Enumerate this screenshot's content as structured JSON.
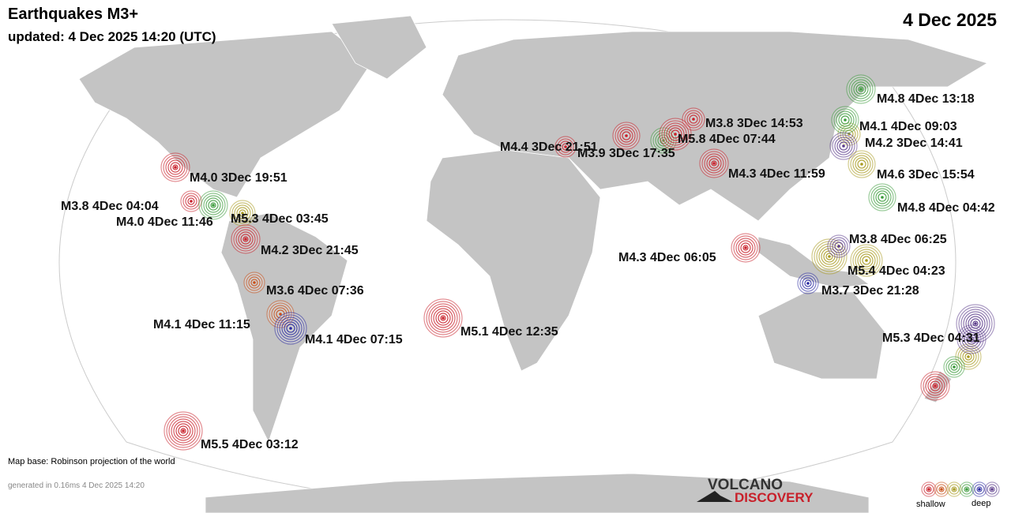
{
  "header": {
    "title": "Earthquakes M3+",
    "updated": "updated:  4 Dec 2025 14:20 (UTC)",
    "date": "4 Dec 2025"
  },
  "quakes": [
    {
      "label": "M4.8  4Dec 13:18",
      "color": "#3a9a3a"
    },
    {
      "label": "M4.1  4Dec 09:03",
      "color": "#3a9a3a"
    },
    {
      "label": "M3.8  3Dec 14:53",
      "color": "#c8202a"
    },
    {
      "label": "M5.8  4Dec 07:44",
      "color": "#c8202a"
    },
    {
      "label": "M4.2  3Dec 14:41",
      "color": "#5a3a8a"
    },
    {
      "label": "M4.4  3Dec 21:51",
      "color": "#c8202a"
    },
    {
      "label": "M3.9  3Dec 17:35",
      "color": "#c8202a"
    },
    {
      "label": "M4.3  4Dec 11:59",
      "color": "#c8202a"
    },
    {
      "label": "M4.6  3Dec 15:54",
      "color": "#a89a20"
    },
    {
      "label": "M4.0  3Dec 19:51",
      "color": "#c8202a"
    },
    {
      "label": "M3.8  4Dec 04:04",
      "color": "#c8202a"
    },
    {
      "label": "M4.8  4Dec 04:42",
      "color": "#3a9a3a"
    },
    {
      "label": "M4.0  4Dec 11:46",
      "color": "#3a9a3a"
    },
    {
      "label": "M5.3  4Dec 03:45",
      "color": "#a89a20"
    },
    {
      "label": "M4.2  3Dec 21:45",
      "color": "#c8202a"
    },
    {
      "label": "M3.8  4Dec 06:25",
      "color": "#5a3a8a"
    },
    {
      "label": "M4.3  4Dec 06:05",
      "color": "#c8202a"
    },
    {
      "label": "M5.4  4Dec 04:23",
      "color": "#a89a20"
    },
    {
      "label": "M3.6  4Dec 07:36",
      "color": "#c8501a"
    },
    {
      "label": "M3.7  3Dec 21:28",
      "color": "#2a2aa0"
    },
    {
      "label": "M4.1  4Dec 11:15",
      "color": "#c8501a"
    },
    {
      "label": "M5.1  4Dec 12:35",
      "color": "#c8202a"
    },
    {
      "label": "M4.1  4Dec 07:15",
      "color": "#2a2aa0"
    },
    {
      "label": "M5.3  4Dec 04:31",
      "color": "#5a3a8a"
    },
    {
      "label": "M5.5  4Dec 03:12",
      "color": "#c8202a"
    }
  ],
  "footer": {
    "map_base": "Map base: Robinson projection of the world",
    "generated": "generated in 0.16ms  4 Dec 2025 14:20"
  },
  "logo": {
    "line1": "VOLCANO",
    "line2": "DISCOVERY"
  },
  "legend": {
    "shallow": "shallow",
    "deep": "deep"
  }
}
